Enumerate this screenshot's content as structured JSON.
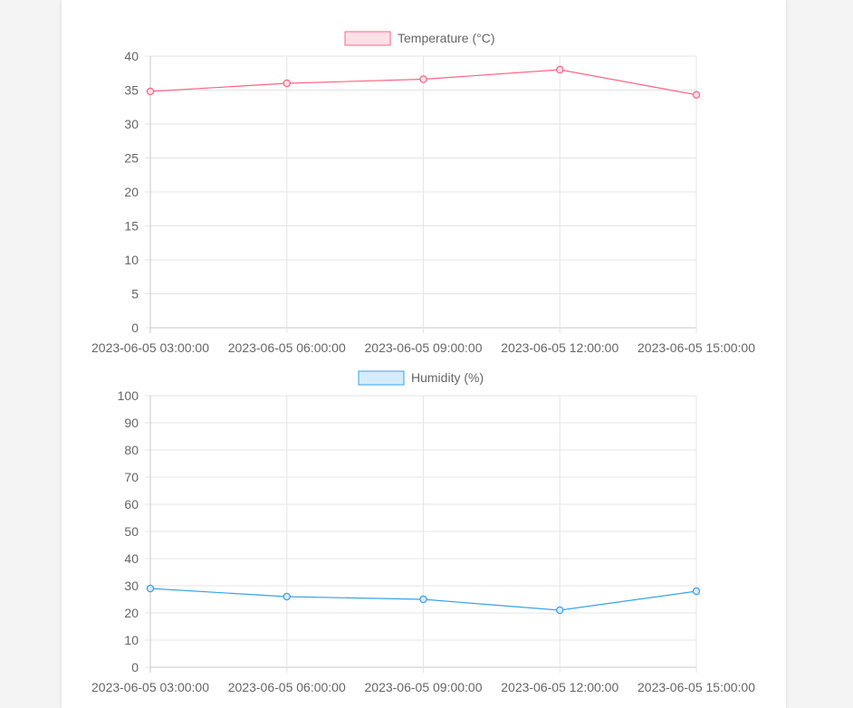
{
  "chart_data": [
    {
      "type": "line",
      "title": "",
      "xlabel": "",
      "ylabel": "",
      "categories": [
        "2023-06-05 03:00:00",
        "2023-06-05 06:00:00",
        "2023-06-05 09:00:00",
        "2023-06-05 12:00:00",
        "2023-06-05 15:00:00"
      ],
      "series": [
        {
          "name": "Temperature (°C)",
          "values": [
            34.8,
            36.0,
            36.6,
            38.0,
            34.3
          ],
          "color": "#ff6384",
          "fill": "#ffe0e6"
        }
      ],
      "ylim": [
        0,
        40
      ],
      "yticks": [
        0,
        5,
        10,
        15,
        20,
        25,
        30,
        35,
        40
      ],
      "grid": true,
      "legend": "top-center"
    },
    {
      "type": "line",
      "title": "",
      "xlabel": "",
      "ylabel": "",
      "categories": [
        "2023-06-05 03:00:00",
        "2023-06-05 06:00:00",
        "2023-06-05 09:00:00",
        "2023-06-05 12:00:00",
        "2023-06-05 15:00:00"
      ],
      "series": [
        {
          "name": "Humidity (%)",
          "values": [
            29,
            26,
            25,
            21,
            28
          ],
          "color": "#36a2eb",
          "fill": "#d7ecfb"
        }
      ],
      "ylim": [
        0,
        100
      ],
      "yticks": [
        0,
        10,
        20,
        30,
        40,
        50,
        60,
        70,
        80,
        90,
        100
      ],
      "grid": true,
      "legend": "top-center"
    }
  ]
}
